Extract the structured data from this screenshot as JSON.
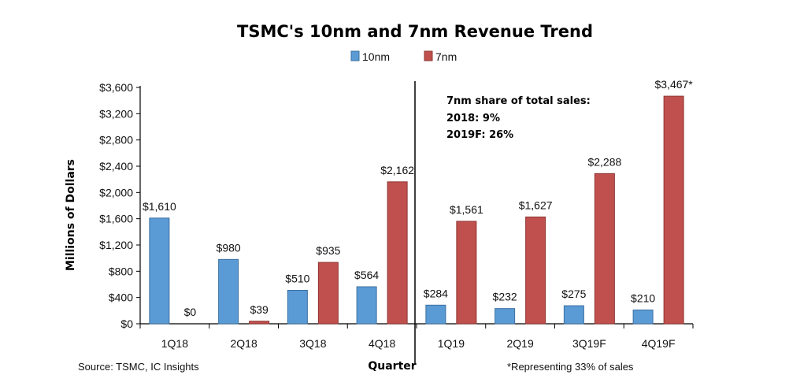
{
  "chart_data": {
    "type": "bar",
    "title": "TSMC's 10nm and 7nm Revenue Trend",
    "xlabel": "Quarter",
    "ylabel": "Millions of Dollars",
    "ylim": [
      0,
      3600
    ],
    "yticks": [
      "$0",
      "$400",
      "$800",
      "$1,200",
      "$1,600",
      "$2,000",
      "$2,400",
      "$2,800",
      "$3,200",
      "$3,600"
    ],
    "categories": [
      "1Q18",
      "2Q18",
      "3Q18",
      "4Q18",
      "1Q19",
      "2Q19",
      "3Q19F",
      "4Q19F"
    ],
    "series": [
      {
        "name": "10nm",
        "color": "#5b9bd5",
        "values": [
          1610,
          980,
          510,
          564,
          284,
          232,
          275,
          210
        ],
        "labels": [
          "$1,610",
          "$980",
          "$510",
          "$564",
          "$284",
          "$232",
          "$275",
          "$210"
        ]
      },
      {
        "name": "7nm",
        "color": "#c0504d",
        "values": [
          0,
          39,
          935,
          2162,
          1561,
          1627,
          2288,
          3467
        ],
        "labels": [
          "$0",
          "$39",
          "$935",
          "$2,162",
          "$1,561",
          "$1,627",
          "$2,288",
          "$3,467*"
        ]
      }
    ],
    "legend": "top-center",
    "grid": false,
    "annotation_lines": [
      "7nm share of total sales:",
      "2018: 9%",
      "2019F: 26%"
    ],
    "source": "Source: TSMC, IC Insights",
    "footnote": "*Representing 33% of sales"
  }
}
